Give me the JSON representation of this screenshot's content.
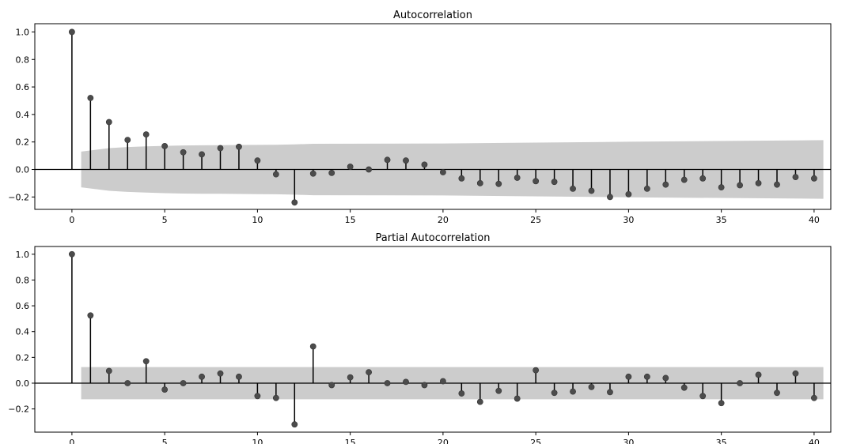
{
  "chart_data": [
    {
      "type": "stem",
      "title": "Autocorrelation",
      "xlabel": "",
      "ylabel": "",
      "xlim": [
        -2,
        40.9
      ],
      "ylim": [
        -0.29,
        1.06
      ],
      "xticks": [
        0,
        5,
        10,
        15,
        20,
        25,
        30,
        35,
        40
      ],
      "yticks": [
        -0.2,
        0.0,
        0.2,
        0.4,
        0.6,
        0.8,
        1.0
      ],
      "ytick_labels": [
        "−0.2",
        "0.0",
        "0.2",
        "0.4",
        "0.6",
        "0.8",
        "1.0"
      ],
      "grid": false,
      "lags": [
        0,
        1,
        2,
        3,
        4,
        5,
        6,
        7,
        8,
        9,
        10,
        11,
        12,
        13,
        14,
        15,
        16,
        17,
        18,
        19,
        20,
        21,
        22,
        23,
        24,
        25,
        26,
        27,
        28,
        29,
        30,
        31,
        32,
        33,
        34,
        35,
        36,
        37,
        38,
        39,
        40
      ],
      "values": [
        1.0,
        0.52,
        0.345,
        0.215,
        0.255,
        0.17,
        0.125,
        0.11,
        0.155,
        0.165,
        0.065,
        -0.035,
        -0.24,
        -0.03,
        -0.025,
        0.02,
        0.0,
        0.07,
        0.065,
        0.035,
        -0.02,
        -0.065,
        -0.1,
        -0.105,
        -0.06,
        -0.085,
        -0.09,
        -0.14,
        -0.155,
        -0.2,
        -0.18,
        -0.14,
        -0.11,
        -0.075,
        -0.065,
        -0.13,
        -0.115,
        -0.1,
        -0.11,
        -0.055,
        -0.065
      ],
      "confidence_band": {
        "lags": [
          0.5,
          2,
          3,
          4,
          5,
          6,
          7,
          8,
          9,
          10,
          11,
          12,
          13,
          20,
          30,
          40.5
        ],
        "upper": [
          0.13,
          0.155,
          0.163,
          0.168,
          0.172,
          0.175,
          0.176,
          0.177,
          0.178,
          0.179,
          0.18,
          0.183,
          0.187,
          0.189,
          0.202,
          0.213
        ]
      },
      "colors": {
        "marker": "#4c4c4c",
        "band": "#cccccc",
        "stem": "#000000"
      }
    },
    {
      "type": "stem",
      "title": "Partial Autocorrelation",
      "xlabel": "",
      "ylabel": "",
      "xlim": [
        -2,
        40.9
      ],
      "ylim": [
        -0.38,
        1.06
      ],
      "xticks": [
        0,
        5,
        10,
        15,
        20,
        25,
        30,
        35,
        40
      ],
      "yticks": [
        -0.2,
        0.0,
        0.2,
        0.4,
        0.6,
        0.8,
        1.0
      ],
      "ytick_labels": [
        "−0.2",
        "0.0",
        "0.2",
        "0.4",
        "0.6",
        "0.8",
        "1.0"
      ],
      "grid": false,
      "lags": [
        0,
        1,
        2,
        3,
        4,
        5,
        6,
        7,
        8,
        9,
        10,
        11,
        12,
        13,
        14,
        15,
        16,
        17,
        18,
        19,
        20,
        21,
        22,
        23,
        24,
        25,
        26,
        27,
        28,
        29,
        30,
        31,
        32,
        33,
        34,
        35,
        36,
        37,
        38,
        39,
        40
      ],
      "values": [
        1.0,
        0.525,
        0.095,
        0.0,
        0.17,
        -0.05,
        0.0,
        0.05,
        0.075,
        0.05,
        -0.1,
        -0.115,
        -0.32,
        0.285,
        -0.015,
        0.045,
        0.085,
        0.0,
        0.01,
        -0.015,
        0.015,
        -0.08,
        -0.145,
        -0.06,
        -0.12,
        0.1,
        -0.075,
        -0.065,
        -0.03,
        -0.07,
        0.05,
        0.05,
        0.04,
        -0.035,
        -0.1,
        -0.155,
        0.0,
        0.065,
        -0.075,
        0.075,
        -0.115
      ],
      "confidence_band": {
        "lags": [
          0.5,
          40.5
        ],
        "upper": [
          0.125,
          0.125
        ]
      },
      "colors": {
        "marker": "#4c4c4c",
        "band": "#cccccc",
        "stem": "#000000"
      }
    }
  ]
}
